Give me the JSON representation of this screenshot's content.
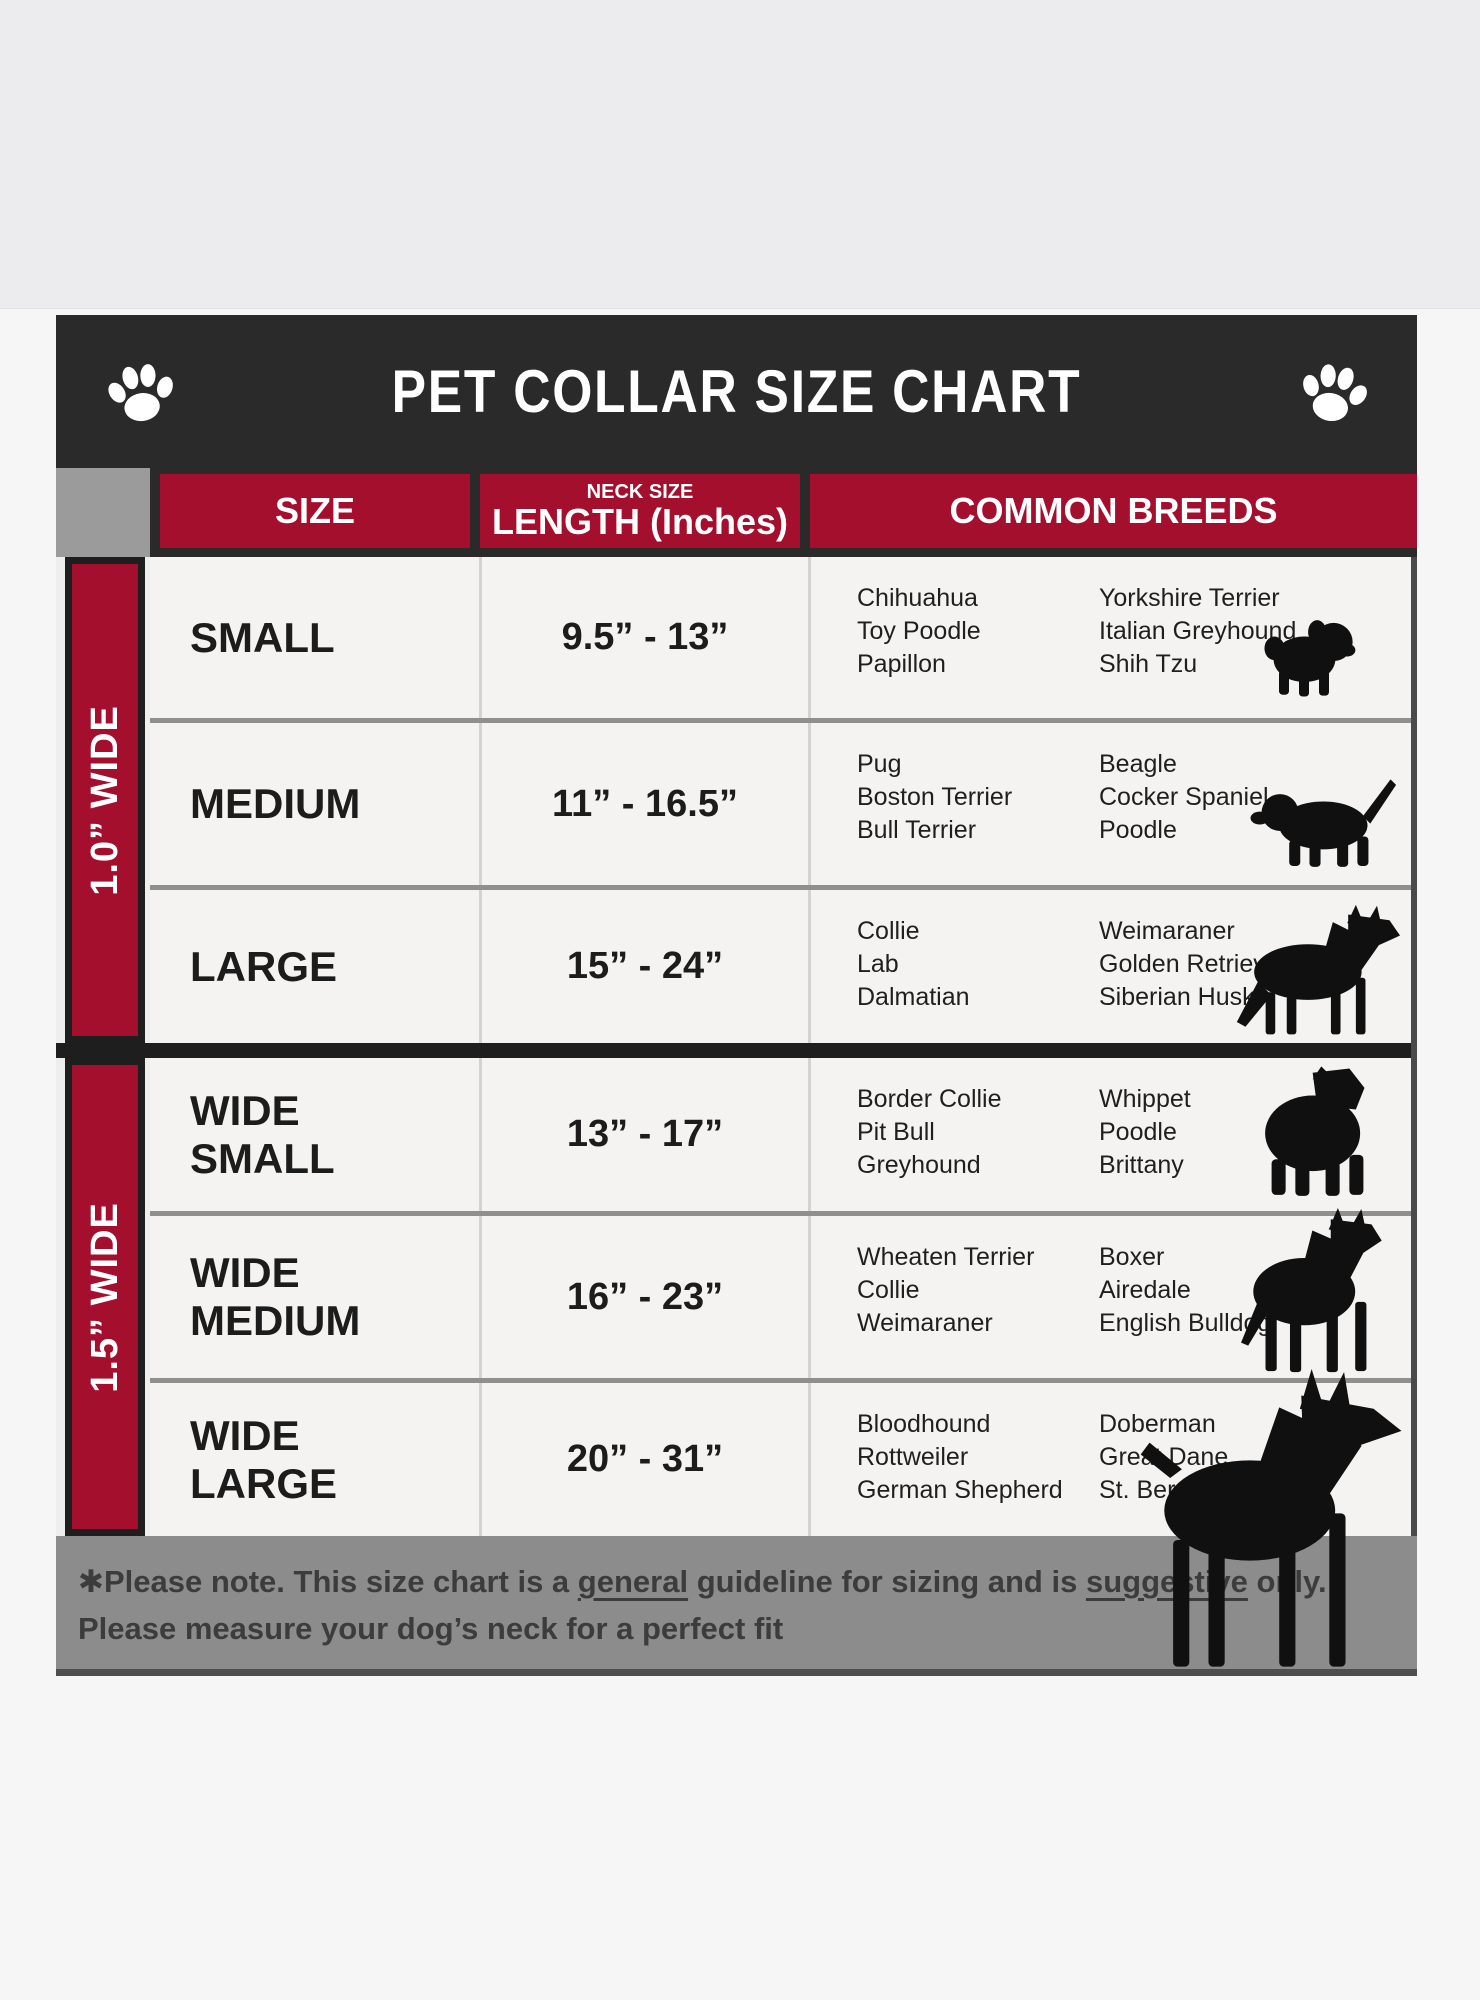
{
  "title": "PET COLLAR SIZE CHART",
  "columns": {
    "size": "SIZE",
    "neck_size": "NECK SIZE",
    "length": "LENGTH (Inches)",
    "breeds": "COMMON BREEDS"
  },
  "groups": [
    {
      "label": "1.0” WIDE"
    },
    {
      "label": "1.5” WIDE"
    }
  ],
  "rows": [
    {
      "size": "SMALL",
      "length": "9.5” - 13”",
      "breeds_a": [
        "Chihuahua",
        "Toy Poodle",
        "Papillon"
      ],
      "breeds_b": [
        "Yorkshire Terrier",
        "Italian Greyhound",
        "Shih Tzu"
      ],
      "dog_icon": "shih-tzu-dog-icon"
    },
    {
      "size": "MEDIUM",
      "length": "11” - 16.5”",
      "breeds_a": [
        "Pug",
        "Boston Terrier",
        "Bull Terrier"
      ],
      "breeds_b": [
        "Beagle",
        "Cocker Spaniel",
        "Poodle"
      ],
      "dog_icon": "beagle-dog-icon"
    },
    {
      "size": "LARGE",
      "length": "15” - 24”",
      "breeds_a": [
        "Collie",
        "Lab",
        "Dalmatian"
      ],
      "breeds_b": [
        "Weimaraner",
        "Golden Retriever",
        "Siberian Husky"
      ],
      "dog_icon": "shepherd-dog-icon"
    },
    {
      "size": "WIDE SMALL",
      "length": "13” - 17”",
      "breeds_a": [
        "Border Collie",
        "Pit Bull",
        "Greyhound"
      ],
      "breeds_b": [
        "Whippet",
        "Poodle",
        "Brittany"
      ],
      "dog_icon": "pit-bull-dog-icon"
    },
    {
      "size": "WIDE MEDIUM",
      "length": "16” - 23”",
      "breeds_a": [
        "Wheaten Terrier",
        "Collie",
        "Weimaraner"
      ],
      "breeds_b": [
        "Boxer",
        "Airedale",
        "English Bulldog"
      ],
      "dog_icon": "boxer-dog-icon"
    },
    {
      "size": "WIDE LARGE",
      "length": "20” - 31”",
      "breeds_a": [
        "Bloodhound",
        "Rottweiler",
        "German Shepherd"
      ],
      "breeds_b": [
        "Doberman",
        "Great Dane",
        "St. Bernard"
      ],
      "dog_icon": "doberman-dog-icon"
    }
  ],
  "footer": {
    "line1_parts": [
      {
        "text": "✱Please note. This size chart is a "
      },
      {
        "text": "general",
        "underline": true
      },
      {
        "text": " guideline for sizing and is "
      },
      {
        "text": "suggestive",
        "underline": true
      },
      {
        "text": " only."
      }
    ],
    "line2": "Please measure your dog’s neck for a perfect fit"
  },
  "icons": [
    "paw-icon",
    "shih-tzu-dog-icon",
    "beagle-dog-icon",
    "shepherd-dog-icon",
    "pit-bull-dog-icon",
    "boxer-dog-icon",
    "doberman-dog-icon"
  ],
  "colors": {
    "accent_red": "#a40f2e",
    "header_dark": "#2b2a2b",
    "row_bg": "#f4f3f1",
    "corner_gray": "#9b9b9b",
    "footer_gray": "#8d8c8d"
  }
}
